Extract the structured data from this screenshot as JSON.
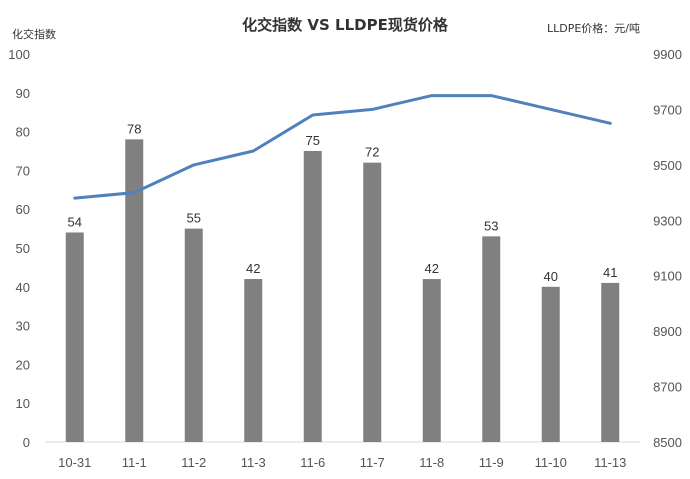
{
  "chart_data": {
    "type": "bar+line",
    "title": "化交指数 VS LLDPE现货价格",
    "left_axis_label": "化交指数",
    "right_axis_label": "LLDPE价格：元/吨",
    "categories": [
      "10-31",
      "11-1",
      "11-2",
      "11-3",
      "11-6",
      "11-7",
      "11-8",
      "11-9",
      "11-10",
      "11-13"
    ],
    "series": [
      {
        "name": "化交指数",
        "type": "bar",
        "axis": "left",
        "color": "#808080",
        "values": [
          54,
          78,
          55,
          42,
          75,
          72,
          42,
          53,
          40,
          41
        ]
      },
      {
        "name": "LLDPE价格",
        "type": "line",
        "axis": "right",
        "color": "#4f81bd",
        "values": [
          9380,
          9400,
          9500,
          9550,
          9680,
          9700,
          9750,
          9750,
          9700,
          9650
        ]
      }
    ],
    "left_ylim": [
      0,
      100
    ],
    "left_ticks": [
      0,
      10,
      20,
      30,
      40,
      50,
      60,
      70,
      80,
      90,
      100
    ],
    "right_ylim": [
      8500,
      9900
    ],
    "right_ticks": [
      8500,
      8700,
      8900,
      9100,
      9300,
      9500,
      9700,
      9900
    ],
    "grid": false
  }
}
